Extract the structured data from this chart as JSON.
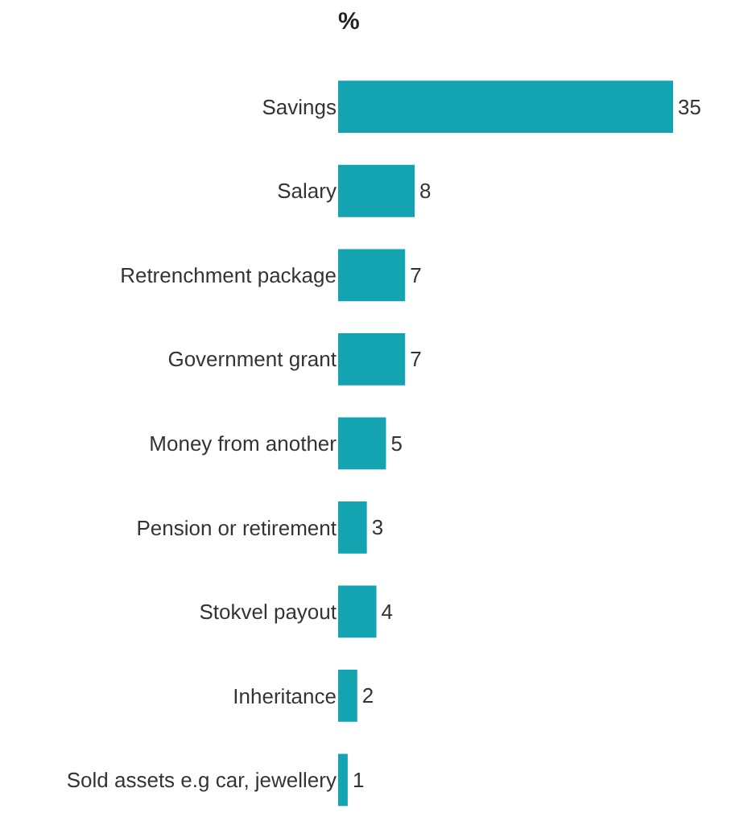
{
  "chart_data": {
    "type": "bar",
    "orientation": "horizontal",
    "title": "%",
    "categories": [
      "Savings",
      "Salary",
      "Retrenchment package",
      "Government grant",
      "Money from another",
      "Pension or retirement",
      "Stokvel payout",
      "Inheritance",
      "Sold assets e.g car, jewellery"
    ],
    "values": [
      35,
      8,
      7,
      7,
      5,
      3,
      4,
      2,
      1
    ],
    "color": "#14a3b1",
    "data_labels": true,
    "tick_labels": "y",
    "grid": false,
    "legend": false
  }
}
